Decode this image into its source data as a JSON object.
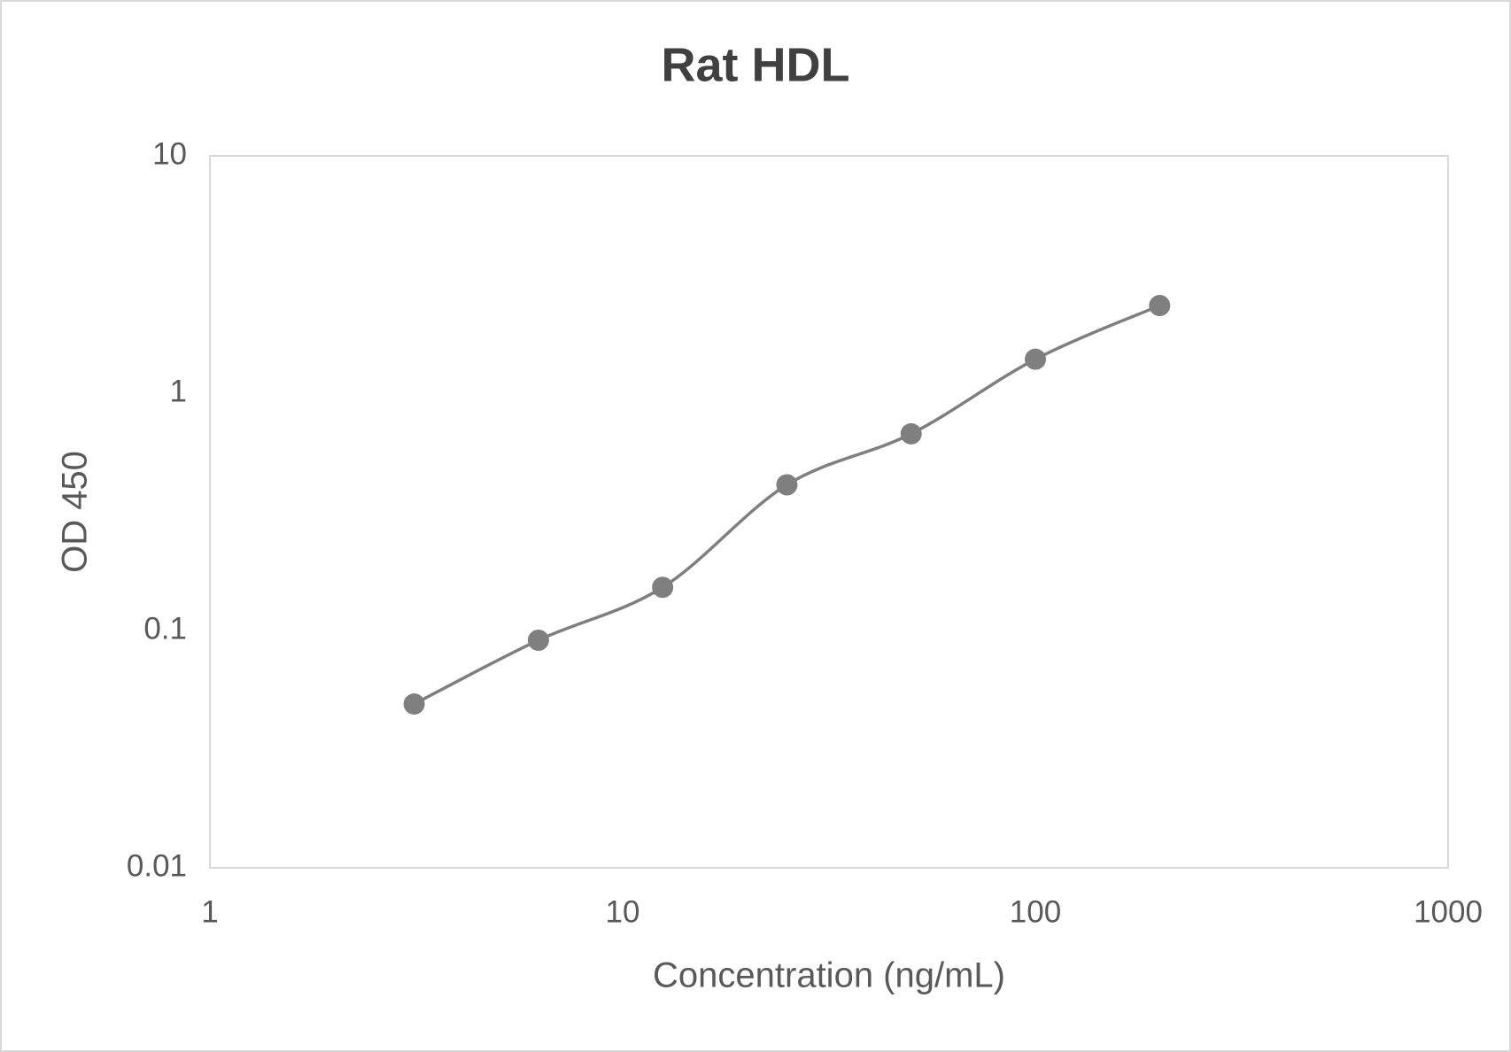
{
  "chart_data": {
    "type": "line",
    "title": "Rat HDL",
    "x_label": "Concentration (ng/mL)",
    "y_label": "OD 450",
    "x": [
      3.125,
      6.25,
      12.5,
      25,
      50,
      100,
      200
    ],
    "values": [
      0.049,
      0.091,
      0.152,
      0.411,
      0.674,
      1.39,
      2.34
    ],
    "color": "#7f7f7f",
    "smooth": true,
    "markers": true,
    "xscale": "log",
    "yscale": "log",
    "xlim": [
      1,
      1000
    ],
    "ylim": [
      0.01,
      10
    ],
    "xticks": [
      1,
      10,
      100,
      1000
    ],
    "yticks": [
      0.01,
      0.1,
      1,
      10
    ],
    "grid": false
  }
}
